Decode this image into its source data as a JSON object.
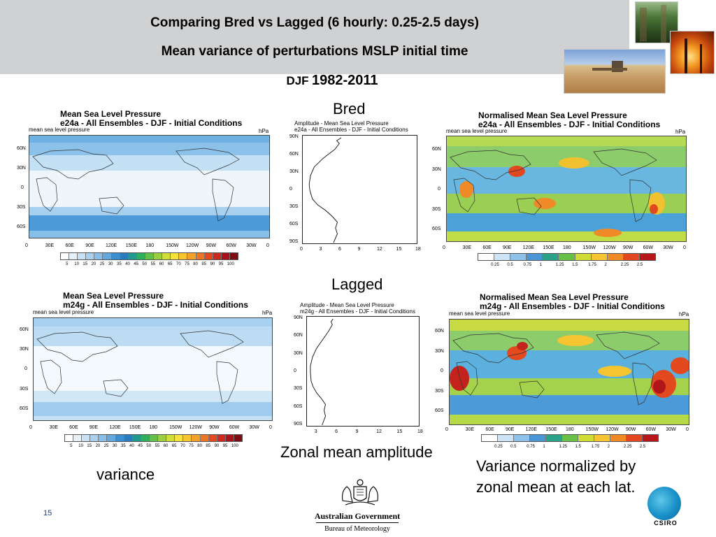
{
  "slide": {
    "title_line1": "Comparing Bred vs Lagged (6 hourly: 0.25-2.5 days)",
    "title_line2": "Mean variance of perturbations MSLP initial time",
    "period_season": "DJF",
    "period_years": "1982-2011",
    "page_number": "15"
  },
  "labels": {
    "bred": "Bred",
    "lagged": "Lagged",
    "zonal_mean": "Zonal mean amplitude",
    "variance": "variance",
    "normalized_line1": "Variance normalized by",
    "normalized_line2": "zonal mean at each lat."
  },
  "maps": {
    "bred_var": {
      "title1": "Mean Sea Level Pressure",
      "title2": "e24a - All Ensembles - DJF - Initial Conditions",
      "var": "mean sea level pressure",
      "unit": "hPa"
    },
    "bred_norm": {
      "title1": "Normalised Mean Sea Level Pressure",
      "title2": "e24a - All Ensembles - DJF - Initial Conditions",
      "var": "mean sea level pressure",
      "unit": "hPa"
    },
    "lag_var": {
      "title1": "Mean Sea Level Pressure",
      "title2": "m24g - All Ensembles - DJF - Initial Conditions",
      "var": "mean sea level pressure",
      "unit": "hPa"
    },
    "lag_norm": {
      "title1": "Normalised Mean Sea Level Pressure",
      "title2": "m24g - All Ensembles - DJF - Initial Conditions",
      "var": "mean sea level pressure",
      "unit": "hPa"
    },
    "lat_ticks": [
      "60N",
      "30N",
      "0",
      "30S",
      "60S"
    ],
    "lon_ticks": [
      "0",
      "30E",
      "60E",
      "90E",
      "120E",
      "150E",
      "180",
      "150W",
      "120W",
      "90W",
      "60W",
      "30W",
      "0"
    ]
  },
  "colorbars": {
    "variance_labels": [
      "5",
      "10",
      "15",
      "20",
      "25",
      "30",
      "35",
      "40",
      "45",
      "50",
      "55",
      "60",
      "65",
      "70",
      "75",
      "80",
      "85",
      "90",
      "95",
      "100"
    ],
    "variance_colors": [
      "#ffffff",
      "#e6f2fb",
      "#c8e1f5",
      "#a8d0ef",
      "#87bfe8",
      "#62a8dd",
      "#3c8fcf",
      "#2b7bbf",
      "#1f9a8d",
      "#2fae5d",
      "#62c04a",
      "#9ccf3f",
      "#d1dd38",
      "#f6e23a",
      "#f8c530",
      "#f6a12a",
      "#ef7524",
      "#e3491f",
      "#cd2a1e",
      "#a8141a",
      "#7d0d12"
    ],
    "normalized_labels": [
      "0.25",
      "0.5",
      "0.75",
      "1",
      "1.25",
      "1.5",
      "1.75",
      "2",
      "2.25",
      "2.5"
    ],
    "normalized_colors": [
      "#ffffff",
      "#cde4f6",
      "#8fc2ea",
      "#4a95d6",
      "#2aa28a",
      "#67c146",
      "#cfdc36",
      "#f7c531",
      "#f08a26",
      "#e24720",
      "#b8161b"
    ]
  },
  "chart_data": [
    {
      "type": "line",
      "title": "",
      "subtitle": "Amplitude - Mean Sea Level Pressure",
      "run": "e24a - All Ensembles - DJF - Initial Conditions",
      "y_ticks": [
        "90N",
        "60N",
        "30N",
        "0",
        "30S",
        "60S",
        "90S"
      ],
      "x_ticks": [
        "0",
        "3",
        "6",
        "9",
        "12",
        "15",
        "18"
      ],
      "xlim": [
        0,
        18
      ],
      "ylim": [
        -90,
        90
      ],
      "series": [
        {
          "x": [
            6.0,
            5.3,
            5.7,
            5.0,
            3.2,
            1.8,
            1.2,
            1.0,
            1.1,
            1.5,
            2.3,
            3.6,
            4.6,
            5.4,
            5.1,
            5.4,
            4.8
          ],
          "y": [
            90,
            85,
            80,
            70,
            55,
            40,
            25,
            10,
            0,
            -15,
            -25,
            -35,
            -45,
            -55,
            -65,
            -75,
            -90
          ]
        }
      ]
    },
    {
      "type": "line",
      "title": "",
      "subtitle": "Amplitude - Mean Sea Level Pressure",
      "run": "m24g - All Ensembles - DJF - Initial Conditions",
      "y_ticks": [
        "90N",
        "60N",
        "30N",
        "0",
        "30S",
        "60S",
        "90S"
      ],
      "x_ticks": [
        "3",
        "6",
        "9",
        "12",
        "15",
        "18"
      ],
      "xlim": [
        1.5,
        18
      ],
      "ylim": [
        -90,
        90
      ],
      "series": [
        {
          "x": [
            5.3,
            5.0,
            5.2,
            4.7,
            3.8,
            2.9,
            2.3,
            2.0,
            2.0,
            2.1,
            2.4,
            2.9,
            3.6,
            4.2,
            4.0,
            4.2,
            3.7
          ],
          "y": [
            90,
            85,
            80,
            70,
            55,
            40,
            25,
            10,
            0,
            -15,
            -25,
            -35,
            -45,
            -55,
            -65,
            -75,
            -90
          ]
        }
      ]
    }
  ]
}
